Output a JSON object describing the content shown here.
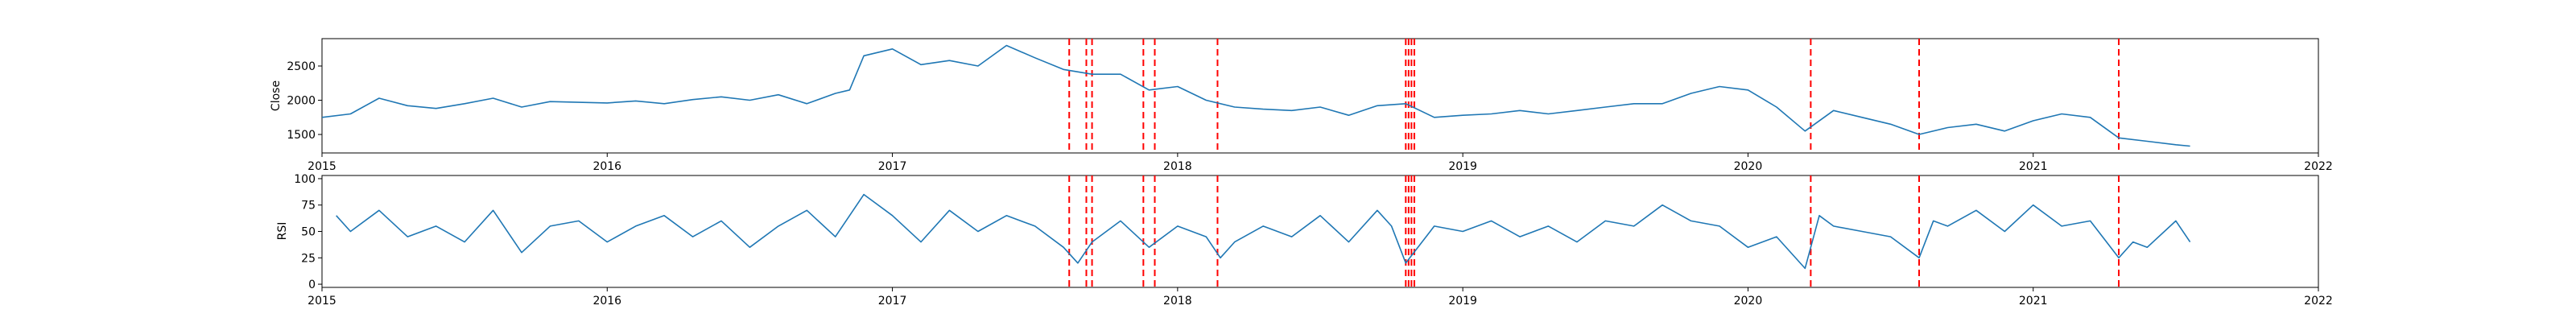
{
  "chart_data": [
    {
      "type": "line",
      "title": "",
      "xlabel": "",
      "ylabel": "Close",
      "xlim": [
        2015.0,
        2022.0
      ],
      "ylim": [
        1230,
        2900
      ],
      "xticks": [
        2015,
        2016,
        2017,
        2018,
        2019,
        2020,
        2021,
        2022
      ],
      "xtick_labels": [
        "2015",
        "2016",
        "2017",
        "2018",
        "2019",
        "2020",
        "2021",
        "2022"
      ],
      "yticks": [
        1500,
        2000,
        2500
      ],
      "ytick_labels": [
        "1500",
        "2000",
        "2500"
      ],
      "series": [
        {
          "color": "#1f77b4",
          "x": [
            2015.0,
            2015.1,
            2015.2,
            2015.3,
            2015.4,
            2015.5,
            2015.6,
            2015.7,
            2015.8,
            2015.9,
            2016.0,
            2016.1,
            2016.2,
            2016.3,
            2016.4,
            2016.5,
            2016.6,
            2016.7,
            2016.8,
            2016.85,
            2016.9,
            2017.0,
            2017.1,
            2017.2,
            2017.3,
            2017.4,
            2017.5,
            2017.6,
            2017.7,
            2017.8,
            2017.9,
            2018.0,
            2018.1,
            2018.2,
            2018.3,
            2018.4,
            2018.5,
            2018.6,
            2018.7,
            2018.8,
            2018.9,
            2019.0,
            2019.1,
            2019.2,
            2019.3,
            2019.4,
            2019.5,
            2019.6,
            2019.7,
            2019.8,
            2019.9,
            2020.0,
            2020.1,
            2020.2,
            2020.3,
            2020.4,
            2020.5,
            2020.6,
            2020.7,
            2020.8,
            2020.9,
            2021.0,
            2021.1,
            2021.2,
            2021.3,
            2021.4,
            2021.5,
            2021.55
          ],
          "values": [
            1750,
            1800,
            2030,
            1920,
            1880,
            1950,
            2030,
            1900,
            1980,
            1970,
            1960,
            1990,
            1950,
            2010,
            2050,
            2000,
            2080,
            1950,
            2100,
            2150,
            2650,
            2750,
            2520,
            2580,
            2500,
            2800,
            2620,
            2450,
            2380,
            2380,
            2150,
            2200,
            2000,
            1900,
            1870,
            1850,
            1900,
            1780,
            1920,
            1950,
            1750,
            1780,
            1800,
            1850,
            1800,
            1850,
            1900,
            1950,
            1950,
            2100,
            2200,
            2150,
            1900,
            1550,
            1850,
            1750,
            1650,
            1500,
            1600,
            1650,
            1550,
            1700,
            1800,
            1750,
            1450,
            1400,
            1350,
            1330
          ]
        }
      ],
      "signals_x": [
        2017.62,
        2017.68,
        2017.7,
        2017.88,
        2017.92,
        2018.14,
        2018.8,
        2018.81,
        2018.82,
        2018.83,
        2020.22,
        2020.6,
        2021.3
      ]
    },
    {
      "type": "line",
      "title": "",
      "xlabel": "",
      "ylabel": "RSI",
      "xlim": [
        2015.0,
        2022.0
      ],
      "ylim": [
        -3,
        103
      ],
      "xticks": [
        2015,
        2016,
        2017,
        2018,
        2019,
        2020,
        2021,
        2022
      ],
      "xtick_labels": [
        "2015",
        "2016",
        "2017",
        "2018",
        "2019",
        "2020",
        "2021",
        "2022"
      ],
      "yticks": [
        0,
        25,
        50,
        75,
        100
      ],
      "ytick_labels": [
        "0",
        "25",
        "50",
        "75",
        "100"
      ],
      "series": [
        {
          "color": "#1f77b4",
          "x": [
            2015.05,
            2015.1,
            2015.2,
            2015.3,
            2015.4,
            2015.5,
            2015.6,
            2015.7,
            2015.8,
            2015.9,
            2016.0,
            2016.1,
            2016.2,
            2016.3,
            2016.4,
            2016.5,
            2016.6,
            2016.7,
            2016.8,
            2016.9,
            2017.0,
            2017.1,
            2017.2,
            2017.3,
            2017.4,
            2017.5,
            2017.6,
            2017.65,
            2017.7,
            2017.8,
            2017.9,
            2018.0,
            2018.1,
            2018.15,
            2018.2,
            2018.3,
            2018.4,
            2018.5,
            2018.6,
            2018.7,
            2018.75,
            2018.8,
            2018.9,
            2019.0,
            2019.1,
            2019.2,
            2019.3,
            2019.4,
            2019.5,
            2019.6,
            2019.7,
            2019.8,
            2019.9,
            2020.0,
            2020.1,
            2020.2,
            2020.25,
            2020.3,
            2020.4,
            2020.5,
            2020.6,
            2020.65,
            2020.7,
            2020.8,
            2020.9,
            2021.0,
            2021.1,
            2021.2,
            2021.3,
            2021.35,
            2021.4,
            2021.5,
            2021.55
          ],
          "values": [
            65,
            50,
            70,
            45,
            55,
            40,
            70,
            30,
            55,
            60,
            40,
            55,
            65,
            45,
            60,
            35,
            55,
            70,
            45,
            85,
            65,
            40,
            70,
            50,
            65,
            55,
            35,
            20,
            40,
            60,
            35,
            55,
            45,
            25,
            40,
            55,
            45,
            65,
            40,
            70,
            55,
            20,
            55,
            50,
            60,
            45,
            55,
            40,
            60,
            55,
            75,
            60,
            55,
            35,
            45,
            15,
            65,
            55,
            50,
            45,
            25,
            60,
            55,
            70,
            50,
            75,
            55,
            60,
            25,
            40,
            35,
            60,
            40
          ]
        }
      ],
      "signals_x": [
        2017.62,
        2017.68,
        2017.7,
        2017.88,
        2017.92,
        2018.14,
        2018.8,
        2018.81,
        2018.82,
        2018.83,
        2020.22,
        2020.6,
        2021.3
      ]
    }
  ]
}
